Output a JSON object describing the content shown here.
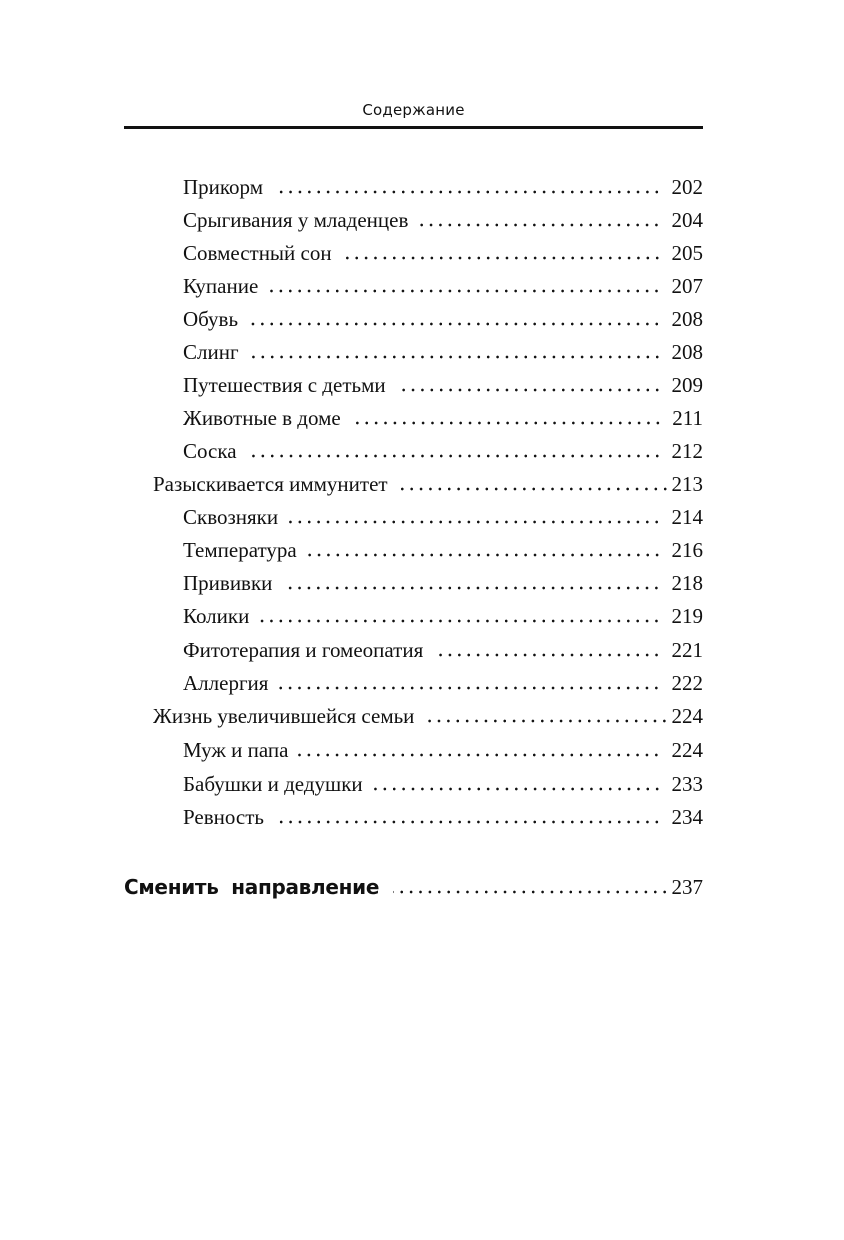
{
  "header": {
    "title": "Содержание"
  },
  "entries": [
    {
      "title": "Прикорм",
      "page": "202",
      "level": 1
    },
    {
      "title": "Срыгивания у младенцев",
      "page": "204",
      "level": 1
    },
    {
      "title": "Совместный сон",
      "page": "205",
      "level": 1
    },
    {
      "title": "Купание",
      "page": "207",
      "level": 1
    },
    {
      "title": "Обувь",
      "page": "208",
      "level": 1
    },
    {
      "title": "Слинг",
      "page": "208",
      "level": 1
    },
    {
      "title": "Путешествия с детьми",
      "page": "209",
      "level": 1
    },
    {
      "title": "Животные в доме",
      "page": "211",
      "level": 1
    },
    {
      "title": "Соска",
      "page": "212",
      "level": 1
    },
    {
      "title": "Разыскивается иммунитет",
      "page": "213",
      "level": 0
    },
    {
      "title": "Сквозняки",
      "page": "214",
      "level": 1
    },
    {
      "title": "Температура",
      "page": "216",
      "level": 1
    },
    {
      "title": "Прививки",
      "page": "218",
      "level": 1
    },
    {
      "title": "Колики",
      "page": "219",
      "level": 1
    },
    {
      "title": "Фитотерапия и гомеопатия",
      "page": "221",
      "level": 1
    },
    {
      "title": "Аллергия",
      "page": "222",
      "level": 1
    },
    {
      "title": "Жизнь увеличившейся семьи",
      "page": "224",
      "level": 0
    },
    {
      "title": "Муж и папа",
      "page": "224",
      "level": 1
    },
    {
      "title": "Бабушки и дедушки",
      "page": "233",
      "level": 1
    },
    {
      "title": "Ревность",
      "page": "234",
      "level": 1
    }
  ],
  "chapter": {
    "title": "Сменить направление",
    "page": "237"
  }
}
